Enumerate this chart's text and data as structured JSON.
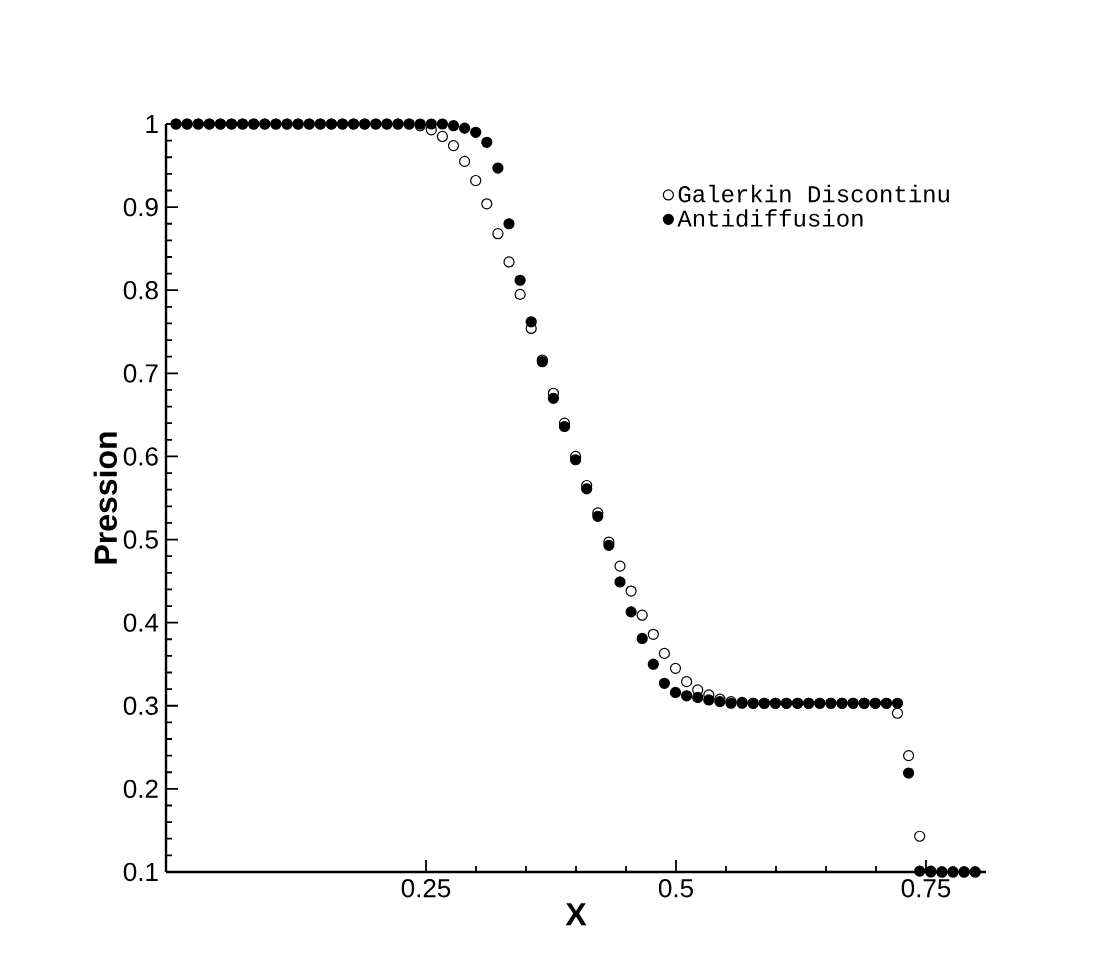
{
  "chart_data": {
    "type": "scatter",
    "xlabel": "X",
    "ylabel": "Pression",
    "xlim": [
      -0.01,
      0.81
    ],
    "ylim": [
      0.1,
      1
    ],
    "xticks": [
      0.25,
      0.5,
      0.75
    ],
    "yticks": [
      0.1,
      0.2,
      0.3,
      0.4,
      0.5,
      0.6,
      0.7,
      0.8,
      0.9,
      1
    ],
    "x": [
      0,
      0.0111,
      0.0222,
      0.0333,
      0.0444,
      0.0555,
      0.0666,
      0.0777,
      0.0888,
      0.0999,
      0.111,
      0.1221,
      0.1332,
      0.1443,
      0.1554,
      0.1665,
      0.1776,
      0.1887,
      0.1998,
      0.2109,
      0.222,
      0.2331,
      0.2442,
      0.2553,
      0.2664,
      0.2775,
      0.2886,
      0.2997,
      0.3108,
      0.3219,
      0.333,
      0.3441,
      0.3552,
      0.3663,
      0.3774,
      0.3885,
      0.3996,
      0.4107,
      0.4218,
      0.4329,
      0.444,
      0.4551,
      0.4662,
      0.4773,
      0.4884,
      0.4995,
      0.5106,
      0.5217,
      0.5328,
      0.5439,
      0.555,
      0.5661,
      0.5772,
      0.5883,
      0.5994,
      0.6105,
      0.6216,
      0.6327,
      0.6438,
      0.6549,
      0.666,
      0.6771,
      0.6882,
      0.6993,
      0.7104,
      0.7215,
      0.7326,
      0.7437,
      0.7548,
      0.7659,
      0.777,
      0.7881,
      0.7992
    ],
    "series": [
      {
        "name": "Galerkin Discontinu",
        "marker": "circle",
        "color": "#000000",
        "values": [
          1,
          1,
          1,
          1,
          1,
          1,
          1,
          1,
          1,
          1,
          1,
          1,
          1,
          1,
          1,
          1,
          1,
          1,
          1,
          1,
          1,
          1,
          0.998,
          0.993,
          0.985,
          0.974,
          0.955,
          0.932,
          0.904,
          0.868,
          0.834,
          0.795,
          0.754,
          0.716,
          0.676,
          0.64,
          0.6,
          0.565,
          0.532,
          0.497,
          0.468,
          0.438,
          0.409,
          0.386,
          0.363,
          0.345,
          0.329,
          0.319,
          0.313,
          0.308,
          0.305,
          0.304,
          0.303,
          0.303,
          0.303,
          0.303,
          0.303,
          0.303,
          0.303,
          0.303,
          0.303,
          0.303,
          0.303,
          0.303,
          0.303,
          0.291,
          0.24,
          0.143,
          0.101,
          0.1,
          0.1,
          0.1,
          0.1
        ]
      },
      {
        "name": "Antidiffusion",
        "marker": "filled circle",
        "color": "#000000",
        "values": [
          1,
          1,
          1,
          1,
          1,
          1,
          1,
          1,
          1,
          1,
          1,
          1,
          1,
          1,
          1,
          1,
          1,
          1,
          1,
          1,
          1,
          1,
          1,
          1,
          1,
          0.998,
          0.995,
          0.99,
          0.978,
          0.947,
          0.88,
          0.812,
          0.762,
          0.714,
          0.67,
          0.636,
          0.596,
          0.561,
          0.528,
          0.493,
          0.449,
          0.413,
          0.381,
          0.35,
          0.327,
          0.316,
          0.312,
          0.31,
          0.307,
          0.305,
          0.303,
          0.303,
          0.303,
          0.303,
          0.303,
          0.303,
          0.303,
          0.303,
          0.303,
          0.303,
          0.303,
          0.303,
          0.303,
          0.303,
          0.303,
          0.303,
          0.219,
          0.101,
          0.1,
          0.1,
          0.1,
          0.1,
          0.1
        ]
      }
    ],
    "legend": "top right",
    "grid": false
  }
}
